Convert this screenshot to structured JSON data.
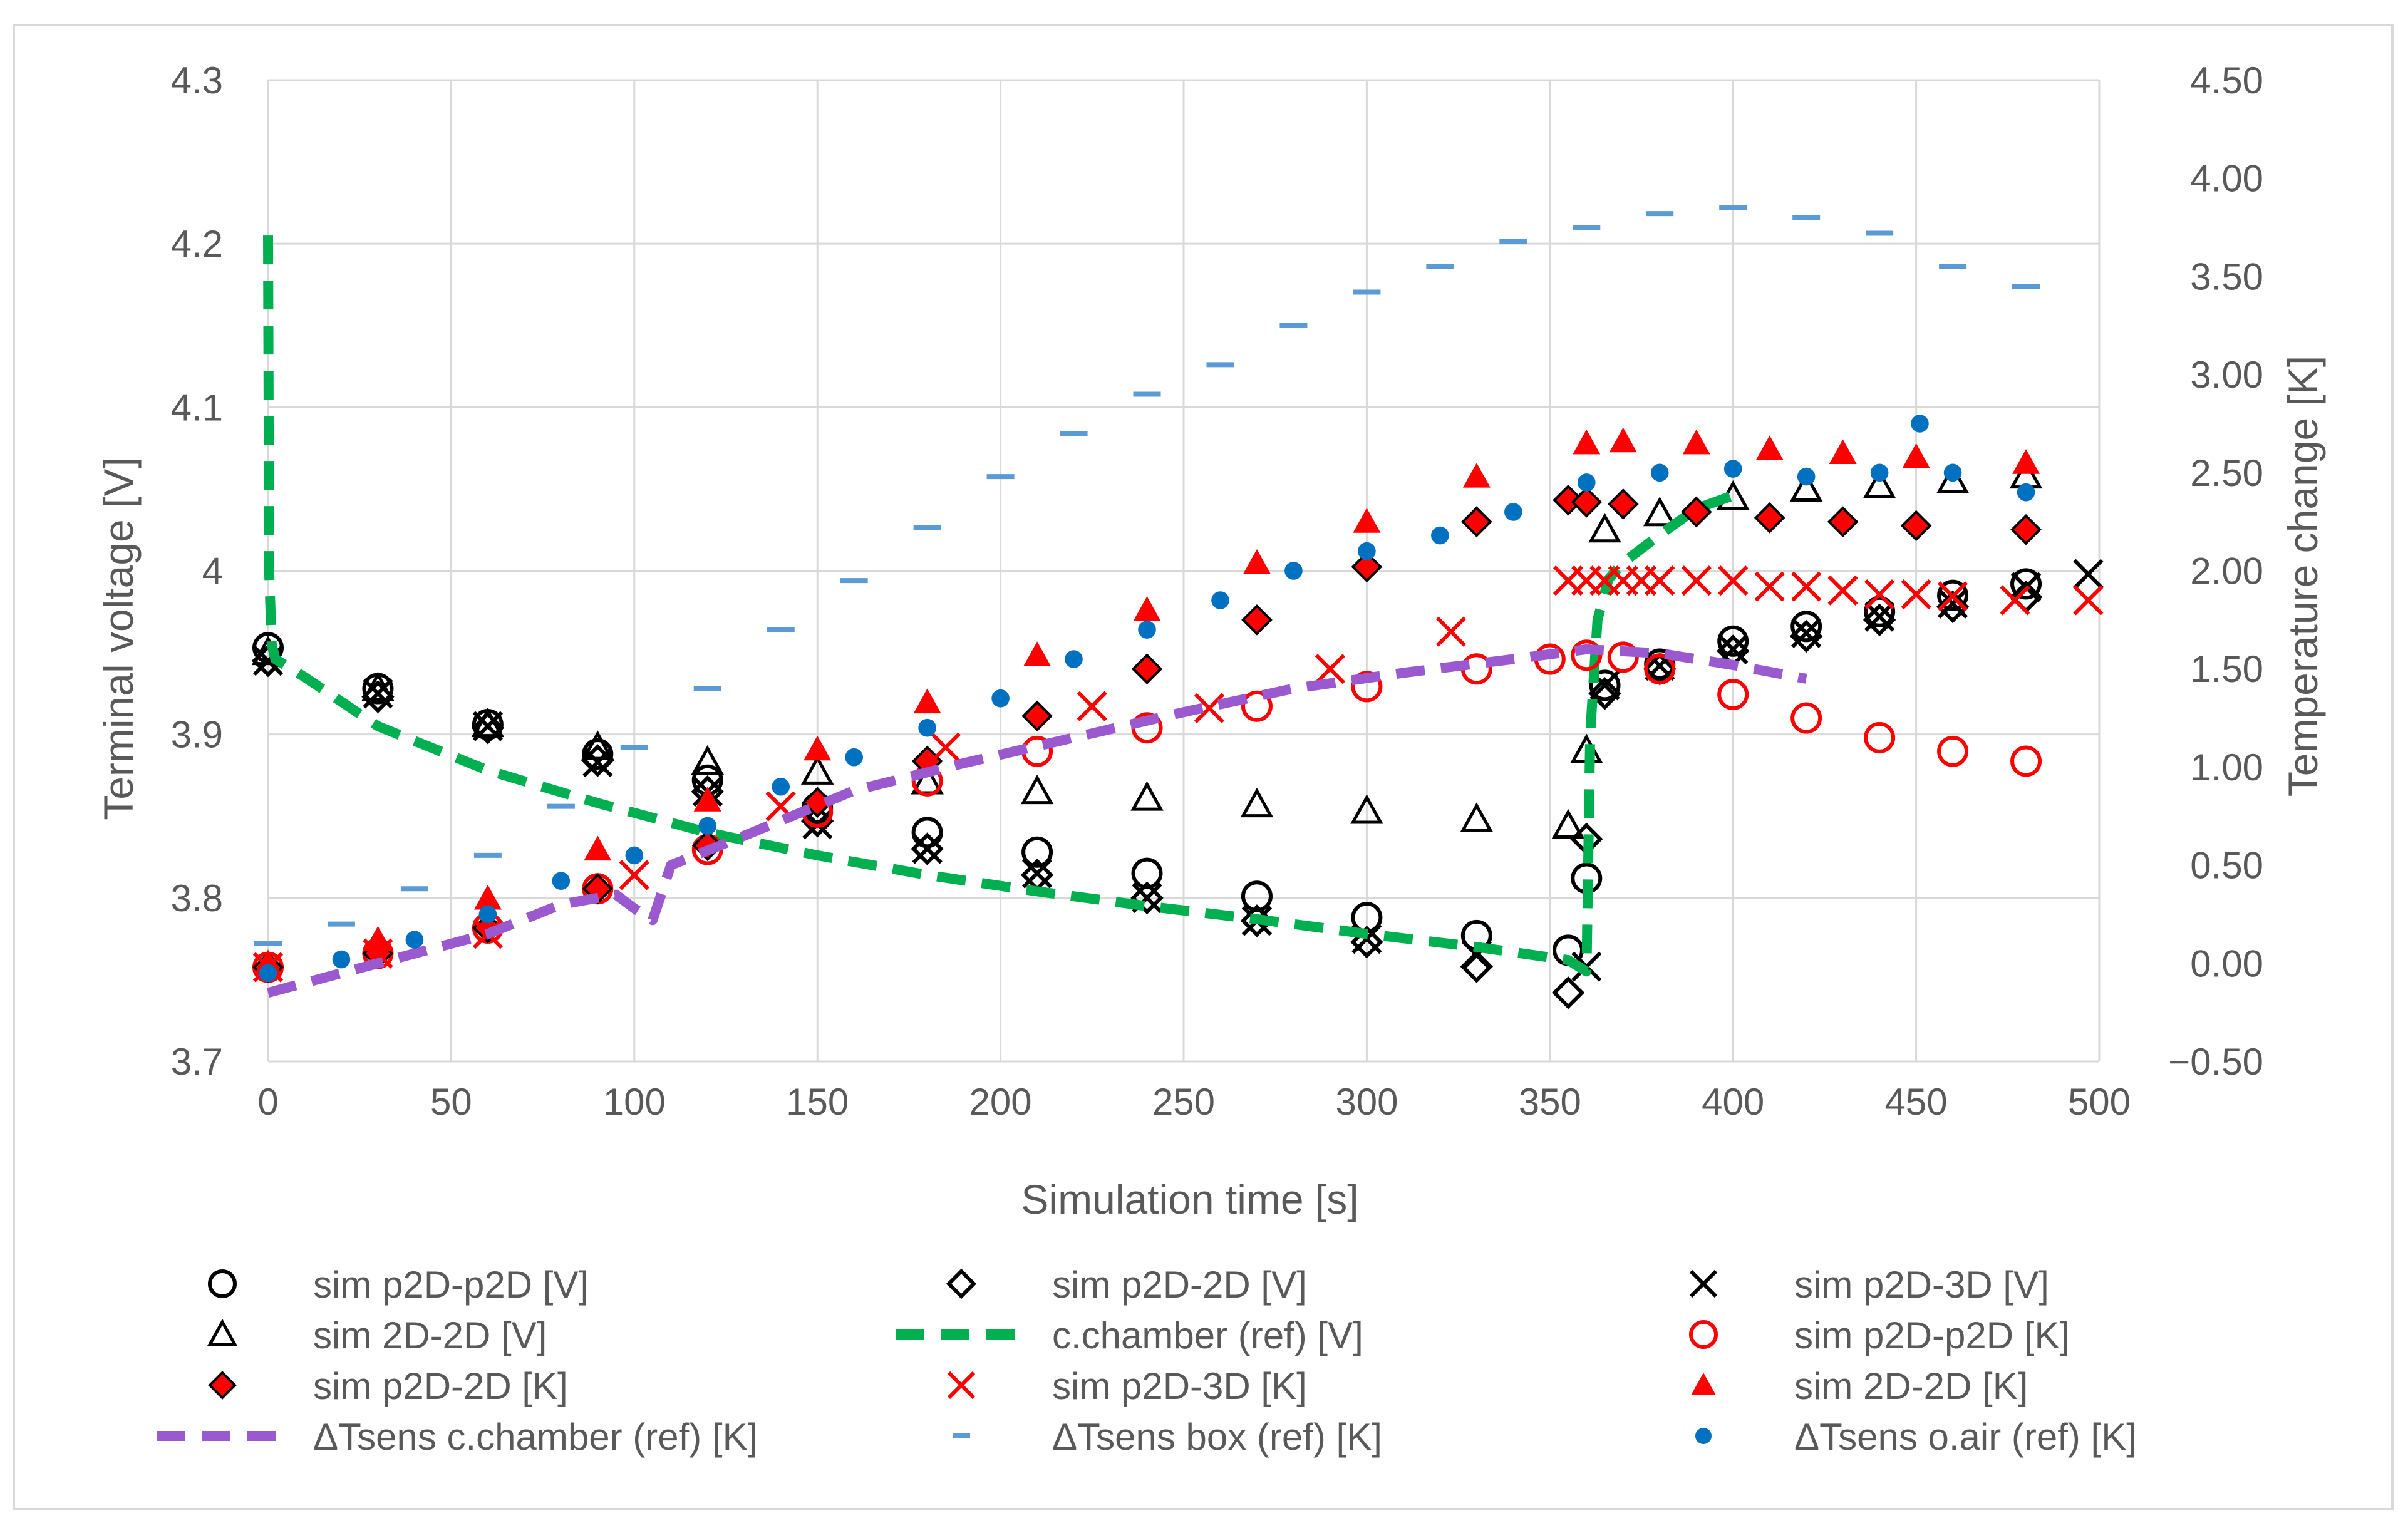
{
  "chart_data": {
    "type": "scatter",
    "title": "",
    "xlabel": "Simulation time [s]",
    "ylabel": "Terminal voltage [V]",
    "y2label": "Temperature change [K]",
    "xlim": [
      0,
      500
    ],
    "ylim": [
      3.7,
      4.3
    ],
    "y2lim": [
      -0.5,
      4.5
    ],
    "grid": true,
    "legend_position": "bottom",
    "x_ticks": [
      0,
      50,
      100,
      150,
      200,
      250,
      300,
      350,
      400,
      450,
      500
    ],
    "x_tick_labels": [
      "0",
      "50",
      "100",
      "150",
      "200",
      "250",
      "300",
      "350",
      "400",
      "450",
      "500"
    ],
    "y_ticks": [
      3.7,
      3.8,
      3.9,
      4.0,
      4.1,
      4.2,
      4.3
    ],
    "y_tick_labels": [
      "3.7",
      "3.8",
      "3.9",
      "4",
      "4.1",
      "4.2",
      "4.3"
    ],
    "y2_ticks": [
      -0.5,
      0,
      0.5,
      1,
      1.5,
      2,
      2.5,
      3,
      3.5,
      4,
      4.5
    ],
    "y2_tick_labels": [
      "−0.50",
      "0.00",
      "0.50",
      "1.00",
      "1.50",
      "2.00",
      "2.50",
      "3.00",
      "3.50",
      "4.00",
      "4.50"
    ],
    "series": [
      {
        "id": "s1",
        "name": "sim p2D-p2D [V]",
        "axis": "left",
        "marker": "circle-open",
        "color": "#000000",
        "x": [
          0,
          30,
          60,
          90,
          120,
          150,
          180,
          210,
          240,
          270,
          300,
          330,
          355,
          360,
          365,
          380,
          400,
          420,
          440,
          460,
          480
        ],
        "y": [
          3.953,
          3.928,
          3.906,
          3.888,
          3.872,
          3.855,
          3.84,
          3.828,
          3.815,
          3.801,
          3.788,
          3.777,
          3.768,
          3.812,
          3.93,
          3.943,
          3.957,
          3.966,
          3.975,
          3.985,
          3.992
        ]
      },
      {
        "id": "s2",
        "name": "sim p2D-2D [V]",
        "axis": "left",
        "marker": "diamond-open",
        "color": "#000000",
        "x": [
          0,
          30,
          60,
          90,
          120,
          150,
          180,
          210,
          240,
          270,
          300,
          330,
          355,
          360,
          365,
          380,
          400,
          420,
          440,
          460,
          480
        ],
        "y": [
          3.945,
          3.923,
          3.904,
          3.884,
          3.865,
          3.847,
          3.83,
          3.814,
          3.8,
          3.786,
          3.773,
          3.758,
          3.742,
          3.836,
          3.925,
          3.94,
          3.951,
          3.96,
          3.97,
          3.978,
          3.984
        ]
      },
      {
        "id": "s3",
        "name": "sim p2D-3D [V]",
        "axis": "left",
        "marker": "x",
        "color": "#000000",
        "x": [
          0,
          30,
          60,
          90,
          120,
          150,
          180,
          210,
          240,
          270,
          300,
          330,
          360,
          365,
          380,
          400,
          420,
          440,
          460,
          480,
          497
        ],
        "y": [
          3.945,
          3.925,
          3.905,
          3.883,
          3.865,
          3.845,
          3.83,
          3.815,
          3.8,
          3.786,
          3.775,
          3.765,
          3.758,
          3.93,
          3.942,
          3.952,
          3.962,
          3.972,
          3.98,
          3.99,
          3.998
        ]
      },
      {
        "id": "s4",
        "name": "sim 2D-2D [V]",
        "axis": "left",
        "marker": "triangle-open",
        "color": "#000000",
        "x": [
          0,
          30,
          60,
          90,
          120,
          150,
          180,
          210,
          240,
          270,
          300,
          330,
          355,
          360,
          365,
          380,
          400,
          420,
          440,
          460,
          480
        ],
        "y": [
          3.95,
          3.928,
          3.906,
          3.892,
          3.883,
          3.877,
          3.871,
          3.865,
          3.861,
          3.857,
          3.853,
          3.848,
          3.844,
          3.89,
          4.025,
          4.035,
          4.045,
          4.05,
          4.052,
          4.055,
          4.058
        ]
      },
      {
        "id": "s5",
        "name": "c.chamber (ref) [V]",
        "axis": "left",
        "marker": "dash-line",
        "color": "#00b050",
        "x": [
          0,
          0.3,
          1,
          2,
          10,
          30,
          60,
          90,
          120,
          150,
          180,
          210,
          240,
          270,
          300,
          330,
          355,
          360,
          361,
          363,
          366,
          370,
          380,
          390,
          400
        ],
        "y": [
          4.205,
          4.0,
          3.955,
          3.946,
          3.935,
          3.905,
          3.878,
          3.858,
          3.84,
          3.826,
          3.814,
          3.804,
          3.795,
          3.787,
          3.778,
          3.77,
          3.762,
          3.755,
          3.9,
          3.97,
          3.995,
          4.005,
          4.022,
          4.038,
          4.046
        ]
      },
      {
        "id": "s6",
        "name": "sim p2D-p2D [K]",
        "axis": "right",
        "marker": "circle-open",
        "color": "#ff0000",
        "x": [
          0,
          30,
          60,
          90,
          120,
          150,
          180,
          210,
          240,
          270,
          300,
          330,
          350,
          360,
          370,
          380,
          400,
          420,
          440,
          460,
          480
        ],
        "y": [
          -0.02,
          0.05,
          0.18,
          0.38,
          0.58,
          0.77,
          0.93,
          1.08,
          1.2,
          1.31,
          1.41,
          1.5,
          1.55,
          1.57,
          1.56,
          1.5,
          1.37,
          1.25,
          1.15,
          1.08,
          1.03
        ]
      },
      {
        "id": "s7",
        "name": "sim p2D-2D [K]",
        "axis": "right",
        "marker": "diamond-filled",
        "color": "#ff0000",
        "x": [
          0,
          30,
          60,
          90,
          120,
          150,
          180,
          210,
          240,
          270,
          300,
          330,
          355,
          360,
          370,
          390,
          410,
          430,
          450,
          480
        ],
        "y": [
          -0.02,
          0.05,
          0.18,
          0.38,
          0.6,
          0.82,
          1.03,
          1.26,
          1.5,
          1.75,
          2.02,
          2.25,
          2.36,
          2.35,
          2.34,
          2.3,
          2.27,
          2.25,
          2.23,
          2.21
        ]
      },
      {
        "id": "s8",
        "name": "sim p2D-3D [K]",
        "axis": "right",
        "marker": "x",
        "color": "#ff0000",
        "x": [
          0,
          30,
          60,
          100,
          140,
          185,
          225,
          257,
          290,
          323,
          355,
          360,
          365,
          370,
          375,
          380,
          390,
          400,
          410,
          420,
          430,
          440,
          450,
          460,
          477,
          497
        ],
        "y": [
          -0.02,
          0.05,
          0.15,
          0.45,
          0.8,
          1.1,
          1.31,
          1.3,
          1.5,
          1.69,
          1.95,
          1.95,
          1.95,
          1.95,
          1.95,
          1.95,
          1.95,
          1.95,
          1.92,
          1.92,
          1.9,
          1.88,
          1.88,
          1.87,
          1.85,
          1.85
        ]
      },
      {
        "id": "s9",
        "name": "sim 2D-2D [K]",
        "axis": "right",
        "marker": "triangle-filled",
        "color": "#ff0000",
        "x": [
          0,
          30,
          60,
          90,
          120,
          150,
          180,
          210,
          240,
          270,
          300,
          330,
          360,
          370,
          390,
          410,
          430,
          450,
          480
        ],
        "y": [
          0.0,
          0.12,
          0.33,
          0.58,
          0.83,
          1.09,
          1.33,
          1.57,
          1.8,
          2.04,
          2.25,
          2.48,
          2.65,
          2.66,
          2.65,
          2.62,
          2.6,
          2.58,
          2.55
        ]
      },
      {
        "id": "s10",
        "name": "ΔTsens c.chamber (ref) [K]",
        "axis": "right",
        "marker": "dash-line",
        "color": "#9b59d0",
        "x": [
          0,
          20,
          40,
          60,
          80,
          95,
          100,
          105,
          110,
          130,
          160,
          190,
          220,
          250,
          280,
          310,
          340,
          360,
          380,
          400,
          420
        ],
        "y": [
          -0.15,
          -0.05,
          0.05,
          0.15,
          0.3,
          0.35,
          0.28,
          0.22,
          0.5,
          0.65,
          0.88,
          1.02,
          1.15,
          1.28,
          1.4,
          1.48,
          1.55,
          1.6,
          1.58,
          1.52,
          1.45
        ]
      },
      {
        "id": "s11",
        "name": "ΔTsens box (ref) [K]",
        "axis": "right",
        "marker": "dash",
        "color": "#5b9bd5",
        "x": [
          0,
          20,
          40,
          60,
          80,
          100,
          120,
          140,
          160,
          180,
          200,
          220,
          240,
          260,
          280,
          300,
          320,
          340,
          360,
          380,
          400,
          420,
          440,
          460,
          480
        ],
        "y": [
          0.1,
          0.2,
          0.38,
          0.55,
          0.8,
          1.1,
          1.4,
          1.7,
          1.95,
          2.22,
          2.48,
          2.7,
          2.9,
          3.05,
          3.25,
          3.42,
          3.55,
          3.68,
          3.75,
          3.82,
          3.85,
          3.8,
          3.72,
          3.55,
          3.45
        ]
      },
      {
        "id": "s12",
        "name": "ΔTsens o.air (ref) [K]",
        "axis": "right",
        "marker": "dot",
        "color": "#0070c0",
        "x": [
          0,
          20,
          40,
          60,
          80,
          100,
          120,
          140,
          160,
          180,
          200,
          220,
          240,
          260,
          280,
          300,
          320,
          340,
          360,
          380,
          400,
          420,
          440,
          451,
          460,
          480
        ],
        "y": [
          -0.05,
          0.02,
          0.12,
          0.25,
          0.42,
          0.55,
          0.7,
          0.9,
          1.05,
          1.2,
          1.35,
          1.55,
          1.7,
          1.85,
          2.0,
          2.1,
          2.18,
          2.3,
          2.45,
          2.5,
          2.52,
          2.48,
          2.5,
          2.75,
          2.5,
          2.4
        ]
      }
    ]
  }
}
